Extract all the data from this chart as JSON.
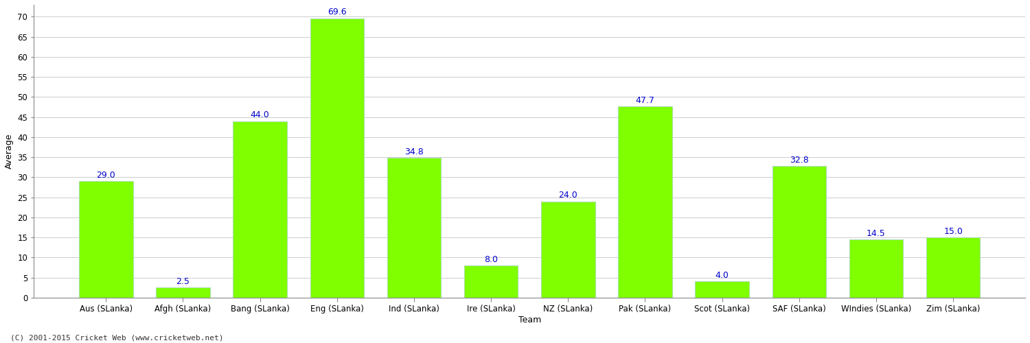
{
  "categories": [
    "Aus (SLanka)",
    "Afgh (SLanka)",
    "Bang (SLanka)",
    "Eng (SLanka)",
    "Ind (SLanka)",
    "Ire (SLanka)",
    "NZ (SLanka)",
    "Pak (SLanka)",
    "Scot (SLanka)",
    "SAF (SLanka)",
    "WIndies (SLanka)",
    "Zim (SLanka)"
  ],
  "values": [
    29.0,
    2.5,
    44.0,
    69.6,
    34.8,
    8.0,
    24.0,
    47.7,
    4.0,
    32.8,
    14.5,
    15.0
  ],
  "bar_color": "#7FFF00",
  "bar_edge_color": "#AADDAA",
  "label_color": "#0000CC",
  "ylabel": "Average",
  "xlabel": "Team",
  "ylim": [
    0,
    73
  ],
  "yticks": [
    0,
    5,
    10,
    15,
    20,
    25,
    30,
    35,
    40,
    45,
    50,
    55,
    60,
    65,
    70
  ],
  "grid_color": "#CCCCCC",
  "background_color": "#FFFFFF",
  "footer": "(C) 2001-2015 Cricket Web (www.cricketweb.net)",
  "label_fontsize": 9,
  "axis_label_fontsize": 9,
  "tick_fontsize": 8.5,
  "footer_fontsize": 8
}
